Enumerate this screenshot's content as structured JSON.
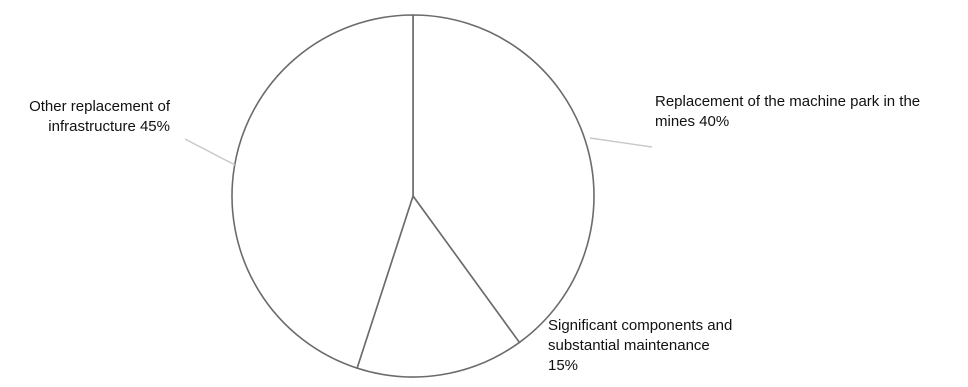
{
  "chart_data": {
    "type": "pie",
    "title": "",
    "start": "12 o'clock, clockwise",
    "slices": [
      {
        "name": "Replacement of the machine park in the mines",
        "value": 40,
        "label_lines": [
          "Replacement of the machine park in the",
          "mines 40%"
        ]
      },
      {
        "name": "Significant components and substantial maintenance",
        "value": 15,
        "label_lines": [
          "Significant components and",
          "substantial maintenance",
          "15%"
        ]
      },
      {
        "name": "Other replacement of infrastructure",
        "value": 45,
        "label_lines": [
          "Other replacement of",
          "infrastructure 45%"
        ]
      }
    ],
    "colors": {
      "fill": "#ffffff",
      "edge": "#6b6b6b",
      "leader": "#c8c8c8",
      "text": "#111111"
    },
    "legend": "none"
  }
}
